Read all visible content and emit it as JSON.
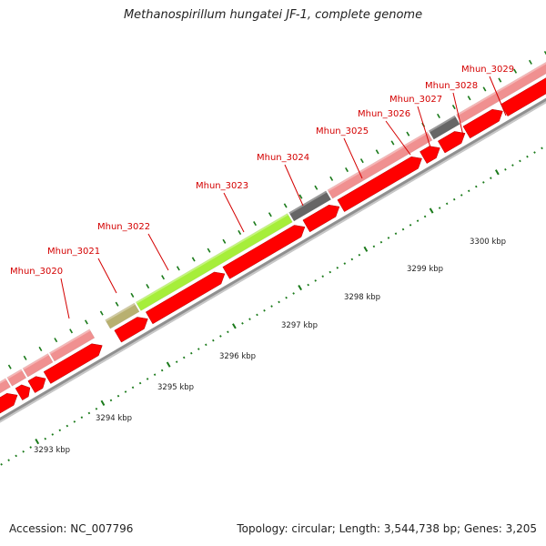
{
  "title": "Methanospirillum hungatei JF-1, complete genome",
  "footer": {
    "accession": "Accession: NC_007796",
    "summary": "Topology: circular; Length: 3,544,738 bp; Genes: 3,205"
  },
  "colors": {
    "label": "#d40000",
    "cds_fwd": "#f09090",
    "cds_rev": "#ff0000",
    "highlight_green": "#a6ee3a",
    "highlight_olive": "#b8b070",
    "gray_gene": "#666666",
    "backbone": "#909090",
    "tick": "#1a7a1a"
  },
  "scale_labels": [
    "3293 kbp",
    "3294 kbp",
    "3295 kbp",
    "3296 kbp",
    "3297 kbp",
    "3298 kbp",
    "3299 kbp",
    "3300 kbp"
  ],
  "gene_labels": [
    "Mhun_3020",
    "Mhun_3021",
    "Mhun_3022",
    "Mhun_3023",
    "Mhun_3024",
    "Mhun_3025",
    "Mhun_3026",
    "Mhun_3027",
    "Mhun_3028",
    "Mhun_3029"
  ]
}
